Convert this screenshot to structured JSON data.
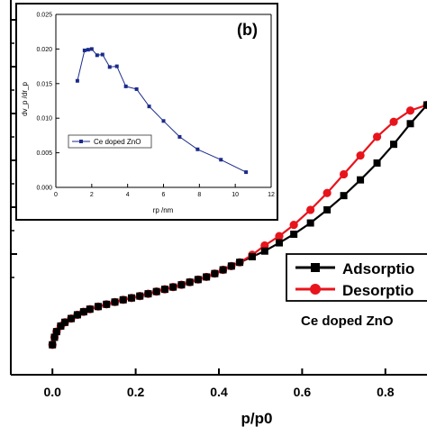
{
  "chart_data": [
    {
      "type": "line",
      "role": "main",
      "xlabel": "p/p0",
      "ylabel": "",
      "xlim": [
        -0.1,
        0.9
      ],
      "x_ticks": [
        "0.0",
        "0.2",
        "0.4",
        "0.6",
        "0.8"
      ],
      "x_tick_values": [
        0.0,
        0.2,
        0.4,
        0.6,
        0.8
      ],
      "ylim": [
        0,
        1
      ],
      "annotation": "Ce doped ZnO",
      "legend": {
        "placement": "right",
        "entries": [
          "Adsorptio",
          "Desorptio"
        ]
      },
      "series": [
        {
          "name": "Adsorptio",
          "marker": "square",
          "color": "#000000",
          "x": [
            0.0,
            0.005,
            0.01,
            0.02,
            0.03,
            0.045,
            0.06,
            0.075,
            0.09,
            0.11,
            0.13,
            0.15,
            0.17,
            0.19,
            0.21,
            0.23,
            0.25,
            0.27,
            0.29,
            0.31,
            0.33,
            0.35,
            0.37,
            0.39,
            0.41,
            0.43,
            0.45,
            0.48,
            0.51,
            0.545,
            0.58,
            0.62,
            0.66,
            0.7,
            0.74,
            0.78,
            0.82,
            0.86,
            0.9
          ],
          "y": [
            0.08,
            0.1,
            0.115,
            0.13,
            0.14,
            0.15,
            0.16,
            0.168,
            0.175,
            0.182,
            0.188,
            0.194,
            0.2,
            0.205,
            0.21,
            0.216,
            0.222,
            0.228,
            0.234,
            0.24,
            0.247,
            0.254,
            0.261,
            0.27,
            0.28,
            0.29,
            0.3,
            0.315,
            0.33,
            0.352,
            0.375,
            0.405,
            0.44,
            0.478,
            0.52,
            0.565,
            0.615,
            0.67,
            0.72
          ]
        },
        {
          "name": "Desorptio",
          "marker": "circle",
          "color": "#e8141c",
          "x": [
            0.0,
            0.005,
            0.01,
            0.02,
            0.03,
            0.045,
            0.06,
            0.075,
            0.09,
            0.11,
            0.13,
            0.15,
            0.17,
            0.19,
            0.21,
            0.23,
            0.25,
            0.27,
            0.29,
            0.31,
            0.33,
            0.35,
            0.37,
            0.39,
            0.41,
            0.43,
            0.45,
            0.48,
            0.51,
            0.545,
            0.58,
            0.62,
            0.66,
            0.7,
            0.74,
            0.78,
            0.82,
            0.86,
            0.9
          ],
          "y": [
            0.08,
            0.1,
            0.115,
            0.13,
            0.14,
            0.15,
            0.16,
            0.168,
            0.175,
            0.182,
            0.188,
            0.194,
            0.2,
            0.205,
            0.21,
            0.216,
            0.222,
            0.228,
            0.234,
            0.24,
            0.247,
            0.254,
            0.261,
            0.27,
            0.28,
            0.29,
            0.3,
            0.32,
            0.345,
            0.37,
            0.4,
            0.44,
            0.485,
            0.535,
            0.585,
            0.635,
            0.675,
            0.705,
            0.72
          ]
        }
      ]
    },
    {
      "type": "line",
      "role": "inset",
      "panel_label": "(b)",
      "xlabel": "rp /nm",
      "ylabel": "dv_p /dr_p",
      "xlim": [
        0,
        12
      ],
      "x_ticks": [
        "0",
        "2",
        "4",
        "6",
        "8",
        "10",
        "12"
      ],
      "x_tick_values": [
        0,
        2,
        4,
        6,
        8,
        10,
        12
      ],
      "ylim": [
        0,
        0.025
      ],
      "y_ticks": [
        "0.000",
        "0.005",
        "0.010",
        "0.015",
        "0.020",
        "0.025"
      ],
      "y_tick_values": [
        0,
        0.005,
        0.01,
        0.015,
        0.02,
        0.025
      ],
      "legend": {
        "placement": "left",
        "entries": [
          "Ce doped ZnO"
        ]
      },
      "series": [
        {
          "name": "Ce doped ZnO",
          "marker": "square",
          "color": "#1a2a8a",
          "x": [
            1.2,
            1.6,
            1.8,
            2.0,
            2.3,
            2.6,
            3.0,
            3.4,
            3.9,
            4.5,
            5.2,
            6.0,
            6.9,
            7.9,
            9.2,
            10.6
          ],
          "y": [
            0.0154,
            0.0198,
            0.0199,
            0.02,
            0.0191,
            0.0192,
            0.0174,
            0.0175,
            0.0146,
            0.0142,
            0.0117,
            0.0096,
            0.0073,
            0.0055,
            0.004,
            0.0022
          ]
        }
      ]
    }
  ]
}
